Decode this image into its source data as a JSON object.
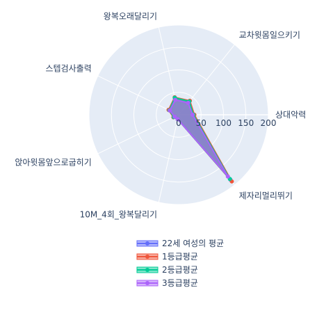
{
  "chart_data": {
    "type": "radar",
    "axes": [
      "상대악력",
      "교차윗몸일으키기",
      "왕복오래달리기",
      "스텝검사출력",
      "앉아윗몸앞으로굽히기",
      "10M_4회_왕복달리기",
      "제자리멀리뛰기"
    ],
    "radial_ticks": [
      "0",
      "50",
      "100",
      "150",
      "200"
    ],
    "radial_range": [
      0,
      200
    ],
    "series": [
      {
        "name": "22세 여성의 평균",
        "color": "#636efa",
        "values": [
          34,
          38,
          38,
          24,
          11,
          10,
          185
        ]
      },
      {
        "name": "1등급평균",
        "color": "#ef553b",
        "values": [
          35,
          40,
          40,
          25,
          13,
          10,
          190
        ]
      },
      {
        "name": "2등급평균",
        "color": "#00cc96",
        "values": [
          33,
          38,
          39,
          23,
          12,
          10,
          183
        ]
      },
      {
        "name": "3등급평균",
        "color": "#ab63fa",
        "values": [
          31,
          34,
          34,
          22,
          10,
          10,
          176
        ]
      }
    ],
    "legend_position": "bottom"
  }
}
